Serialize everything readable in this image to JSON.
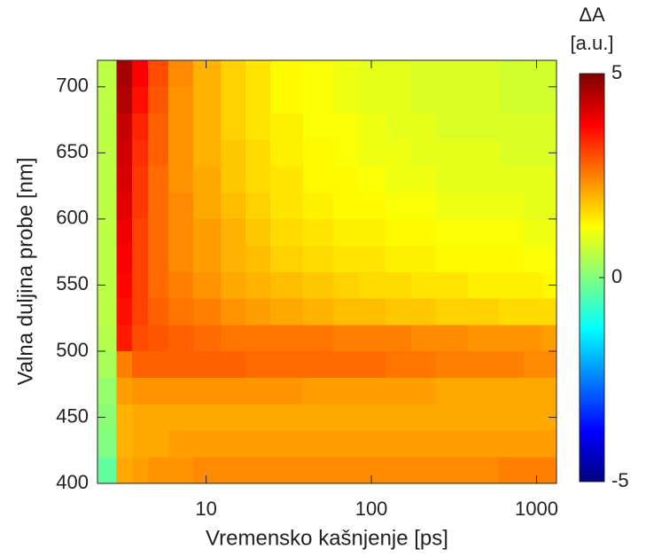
{
  "chart_data": {
    "type": "heatmap",
    "xlabel": "Vremensko kašnjenje [ps]",
    "ylabel": "Valna duljina probe [nm]",
    "clabel": [
      "ΔA",
      "[a.u.]"
    ],
    "xscale": "log",
    "x": [
      2.6,
      3.2,
      4,
      5,
      7,
      10,
      15,
      20,
      30,
      50,
      70,
      100,
      150,
      200,
      300,
      500,
      700,
      1000,
      1200
    ],
    "y": [
      410,
      430,
      450,
      470,
      490,
      510,
      530,
      550,
      570,
      590,
      610,
      630,
      650,
      670,
      690,
      710
    ],
    "z": [
      [
        -0.3,
        2.1,
        2.2,
        2.3,
        2.3,
        2.4,
        2.4,
        2.4,
        2.4,
        2.4,
        2.4,
        2.4,
        2.4,
        2.4,
        2.4,
        2.4,
        2.5,
        2.5,
        2.5
      ],
      [
        0.0,
        2.0,
        2.1,
        2.1,
        2.2,
        2.2,
        2.2,
        2.2,
        2.2,
        2.2,
        2.2,
        2.2,
        2.2,
        2.2,
        2.2,
        2.2,
        2.2,
        2.2,
        2.2
      ],
      [
        0.1,
        2.0,
        2.1,
        2.1,
        2.1,
        2.1,
        2.1,
        2.1,
        2.1,
        2.1,
        2.1,
        2.1,
        2.1,
        2.1,
        2.1,
        2.1,
        2.1,
        2.1,
        2.1
      ],
      [
        0.2,
        2.2,
        2.3,
        2.3,
        2.3,
        2.3,
        2.3,
        2.3,
        2.3,
        2.2,
        2.2,
        2.2,
        2.2,
        2.2,
        2.1,
        2.1,
        2.1,
        2.1,
        2.1
      ],
      [
        0.4,
        2.5,
        2.8,
        2.8,
        2.8,
        2.8,
        2.8,
        2.7,
        2.7,
        2.7,
        2.7,
        2.7,
        2.6,
        2.6,
        2.5,
        2.5,
        2.5,
        2.4,
        2.4
      ],
      [
        0.5,
        3.5,
        3.0,
        2.9,
        2.8,
        2.7,
        2.6,
        2.6,
        2.6,
        2.6,
        2.5,
        2.5,
        2.5,
        2.4,
        2.4,
        2.3,
        2.3,
        2.3,
        2.2
      ],
      [
        0.6,
        3.6,
        3.1,
        2.8,
        2.6,
        2.5,
        2.3,
        2.2,
        2.1,
        2.0,
        1.9,
        1.9,
        1.8,
        1.8,
        1.7,
        1.7,
        1.6,
        1.6,
        1.6
      ],
      [
        0.6,
        3.7,
        3.1,
        2.7,
        2.5,
        2.3,
        2.1,
        2.0,
        1.9,
        1.8,
        1.7,
        1.6,
        1.6,
        1.5,
        1.5,
        1.4,
        1.4,
        1.4,
        1.3
      ],
      [
        0.6,
        3.8,
        3.1,
        2.7,
        2.4,
        2.2,
        2.0,
        1.9,
        1.7,
        1.6,
        1.5,
        1.5,
        1.4,
        1.4,
        1.3,
        1.3,
        1.3,
        1.2,
        1.2
      ],
      [
        0.6,
        3.9,
        3.1,
        2.7,
        2.4,
        2.2,
        2.0,
        1.8,
        1.6,
        1.5,
        1.4,
        1.4,
        1.3,
        1.3,
        1.2,
        1.2,
        1.2,
        1.1,
        1.1
      ],
      [
        0.6,
        4.0,
        3.2,
        2.7,
        2.4,
        2.1,
        1.9,
        1.7,
        1.5,
        1.4,
        1.3,
        1.3,
        1.2,
        1.2,
        1.1,
        1.1,
        1.1,
        1.0,
        1.0
      ],
      [
        0.6,
        4.1,
        3.2,
        2.7,
        2.3,
        2.1,
        1.8,
        1.6,
        1.5,
        1.3,
        1.3,
        1.2,
        1.1,
        1.1,
        1.0,
        1.0,
        1.0,
        1.0,
        1.0
      ],
      [
        0.6,
        4.2,
        3.3,
        2.8,
        2.3,
        2.0,
        1.8,
        1.6,
        1.4,
        1.3,
        1.2,
        1.1,
        1.1,
        1.0,
        1.0,
        1.0,
        0.9,
        0.9,
        0.9
      ],
      [
        0.6,
        4.3,
        3.4,
        2.8,
        2.3,
        2.0,
        1.7,
        1.5,
        1.4,
        1.2,
        1.2,
        1.1,
        1.0,
        1.0,
        0.9,
        0.9,
        0.9,
        0.9,
        0.9
      ],
      [
        0.6,
        4.5,
        3.6,
        2.9,
        2.3,
        2.0,
        1.7,
        1.5,
        1.3,
        1.2,
        1.1,
        1.0,
        1.0,
        0.9,
        0.9,
        0.9,
        0.8,
        0.8,
        0.8
      ],
      [
        0.6,
        4.6,
        3.8,
        3.0,
        2.4,
        2.0,
        1.7,
        1.5,
        1.3,
        1.2,
        1.1,
        1.0,
        1.0,
        0.9,
        0.9,
        0.9,
        0.8,
        0.8,
        0.8
      ]
    ],
    "xlim": [
      2.2,
      1320
    ],
    "xticks": [
      10,
      100,
      1000
    ],
    "ylim": [
      400,
      720
    ],
    "yticks": [
      400,
      450,
      500,
      550,
      600,
      650,
      700
    ],
    "clim": [
      -5,
      5
    ],
    "cticks": [
      -5,
      0,
      5
    ],
    "colormap": "jet"
  }
}
